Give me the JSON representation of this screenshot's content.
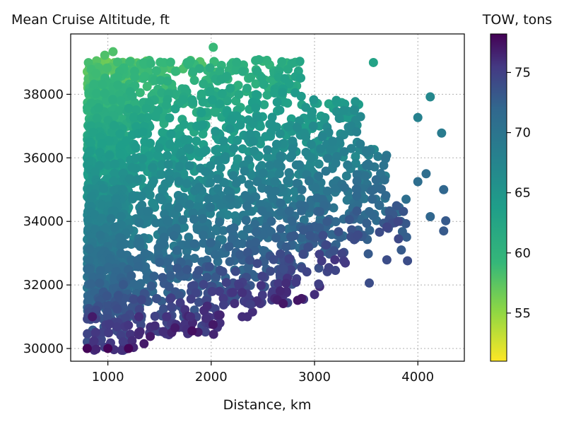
{
  "chart_data": {
    "type": "scatter",
    "title": "Mean Cruise Altitude, ft",
    "xlabel": "Distance, km",
    "ylabel": "",
    "xlim": [
      640,
      4450
    ],
    "ylim": [
      29600,
      39900
    ],
    "xticks": [
      1000,
      2000,
      3000,
      4000
    ],
    "yticks": [
      30000,
      32000,
      34000,
      36000,
      38000
    ],
    "grid": "dotted",
    "colorbar": {
      "label": "TOW, tons",
      "colormap": "viridis_r",
      "range": [
        51,
        78.2
      ],
      "ticks": [
        55,
        60,
        65,
        70,
        75
      ]
    },
    "points": [
      {
        "x": 800,
        "y": 30000,
        "tow": 78
      },
      {
        "x": 1000,
        "y": 30000,
        "tow": 78
      },
      {
        "x": 1200,
        "y": 30000,
        "tow": 78
      },
      {
        "x": 1350,
        "y": 30150,
        "tow": 77
      },
      {
        "x": 1410,
        "y": 30380,
        "tow": 77
      },
      {
        "x": 850,
        "y": 31000,
        "tow": 77
      },
      {
        "x": 1300,
        "y": 31000,
        "tow": 76
      },
      {
        "x": 1800,
        "y": 31000,
        "tow": 76
      },
      {
        "x": 1650,
        "y": 30650,
        "tow": 77
      },
      {
        "x": 1950,
        "y": 30950,
        "tow": 76
      },
      {
        "x": 2300,
        "y": 31000,
        "tow": 76
      },
      {
        "x": 2400,
        "y": 31150,
        "tow": 76
      },
      {
        "x": 2350,
        "y": 31000,
        "tow": 76
      },
      {
        "x": 2120,
        "y": 31370,
        "tow": 75
      },
      {
        "x": 2380,
        "y": 31390,
        "tow": 75
      },
      {
        "x": 3000,
        "y": 31700,
        "tow": 76
      },
      {
        "x": 3050,
        "y": 31950,
        "tow": 76
      },
      {
        "x": 3530,
        "y": 32060,
        "tow": 74
      },
      {
        "x": 3040,
        "y": 32030,
        "tow": 75
      },
      {
        "x": 2700,
        "y": 32500,
        "tow": 74
      },
      {
        "x": 3900,
        "y": 32760,
        "tow": 74
      },
      {
        "x": 3700,
        "y": 32790,
        "tow": 74
      },
      {
        "x": 3840,
        "y": 33100,
        "tow": 73
      },
      {
        "x": 3520,
        "y": 32980,
        "tow": 73
      },
      {
        "x": 4000,
        "y": 35250,
        "tow": 71
      },
      {
        "x": 4080,
        "y": 35500,
        "tow": 71
      },
      {
        "x": 4120,
        "y": 34150,
        "tow": 72
      },
      {
        "x": 4250,
        "y": 33700,
        "tow": 73
      },
      {
        "x": 4270,
        "y": 34020,
        "tow": 73
      },
      {
        "x": 4250,
        "y": 35000,
        "tow": 72
      },
      {
        "x": 4000,
        "y": 37270,
        "tow": 68
      },
      {
        "x": 4120,
        "y": 37920,
        "tow": 67
      },
      {
        "x": 4230,
        "y": 36780,
        "tow": 69
      },
      {
        "x": 3570,
        "y": 39000,
        "tow": 63
      },
      {
        "x": 2020,
        "y": 39480,
        "tow": 59
      },
      {
        "x": 970,
        "y": 39230,
        "tow": 58
      },
      {
        "x": 1050,
        "y": 39340,
        "tow": 58
      },
      {
        "x": 2780,
        "y": 38970,
        "tow": 62
      }
    ]
  }
}
